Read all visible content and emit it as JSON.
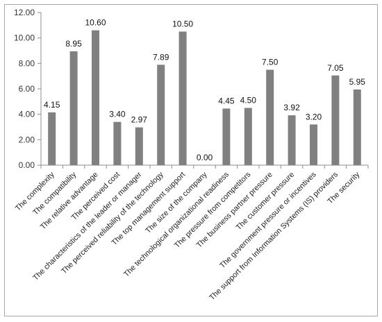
{
  "chart_data": {
    "type": "bar",
    "title": "",
    "xlabel": "",
    "ylabel": "",
    "categories": [
      "The complexity",
      "The compatibility",
      "The relative advantage",
      "The perceived cost",
      "The characteristics of the leader or manager",
      "The perceived reliability of the technology",
      "The top management support",
      "The size of the company",
      "The technological organizational readiness",
      "The pressure from competitors",
      "The business partner pressure",
      "The customer pressure",
      "The government pressure or incentives",
      "The support from Information Systems (IS) providers",
      "The security"
    ],
    "values": [
      4.15,
      8.95,
      10.6,
      3.4,
      2.97,
      7.89,
      10.5,
      0.0,
      4.45,
      4.5,
      7.5,
      3.92,
      3.2,
      7.05,
      5.95
    ],
    "data_labels": [
      "4.15",
      "8.95",
      "10.60",
      "3.40",
      "2.97",
      "7.89",
      "10.50",
      "0.00",
      "4.45",
      "4.50",
      "7.50",
      "3.92",
      "3.20",
      "7.05",
      "5.95"
    ],
    "ylim": [
      0,
      12
    ],
    "y_ticks": [
      0,
      2,
      4,
      6,
      8,
      10,
      12
    ],
    "y_tick_labels": [
      "0.00",
      "2.00",
      "4.00",
      "6.00",
      "8.00",
      "10.00",
      "12.00"
    ],
    "grid": false,
    "legend": "none",
    "colors": {
      "bar": "#808080",
      "axis": "#8c8c8c",
      "border": "#a6a6a6"
    }
  }
}
